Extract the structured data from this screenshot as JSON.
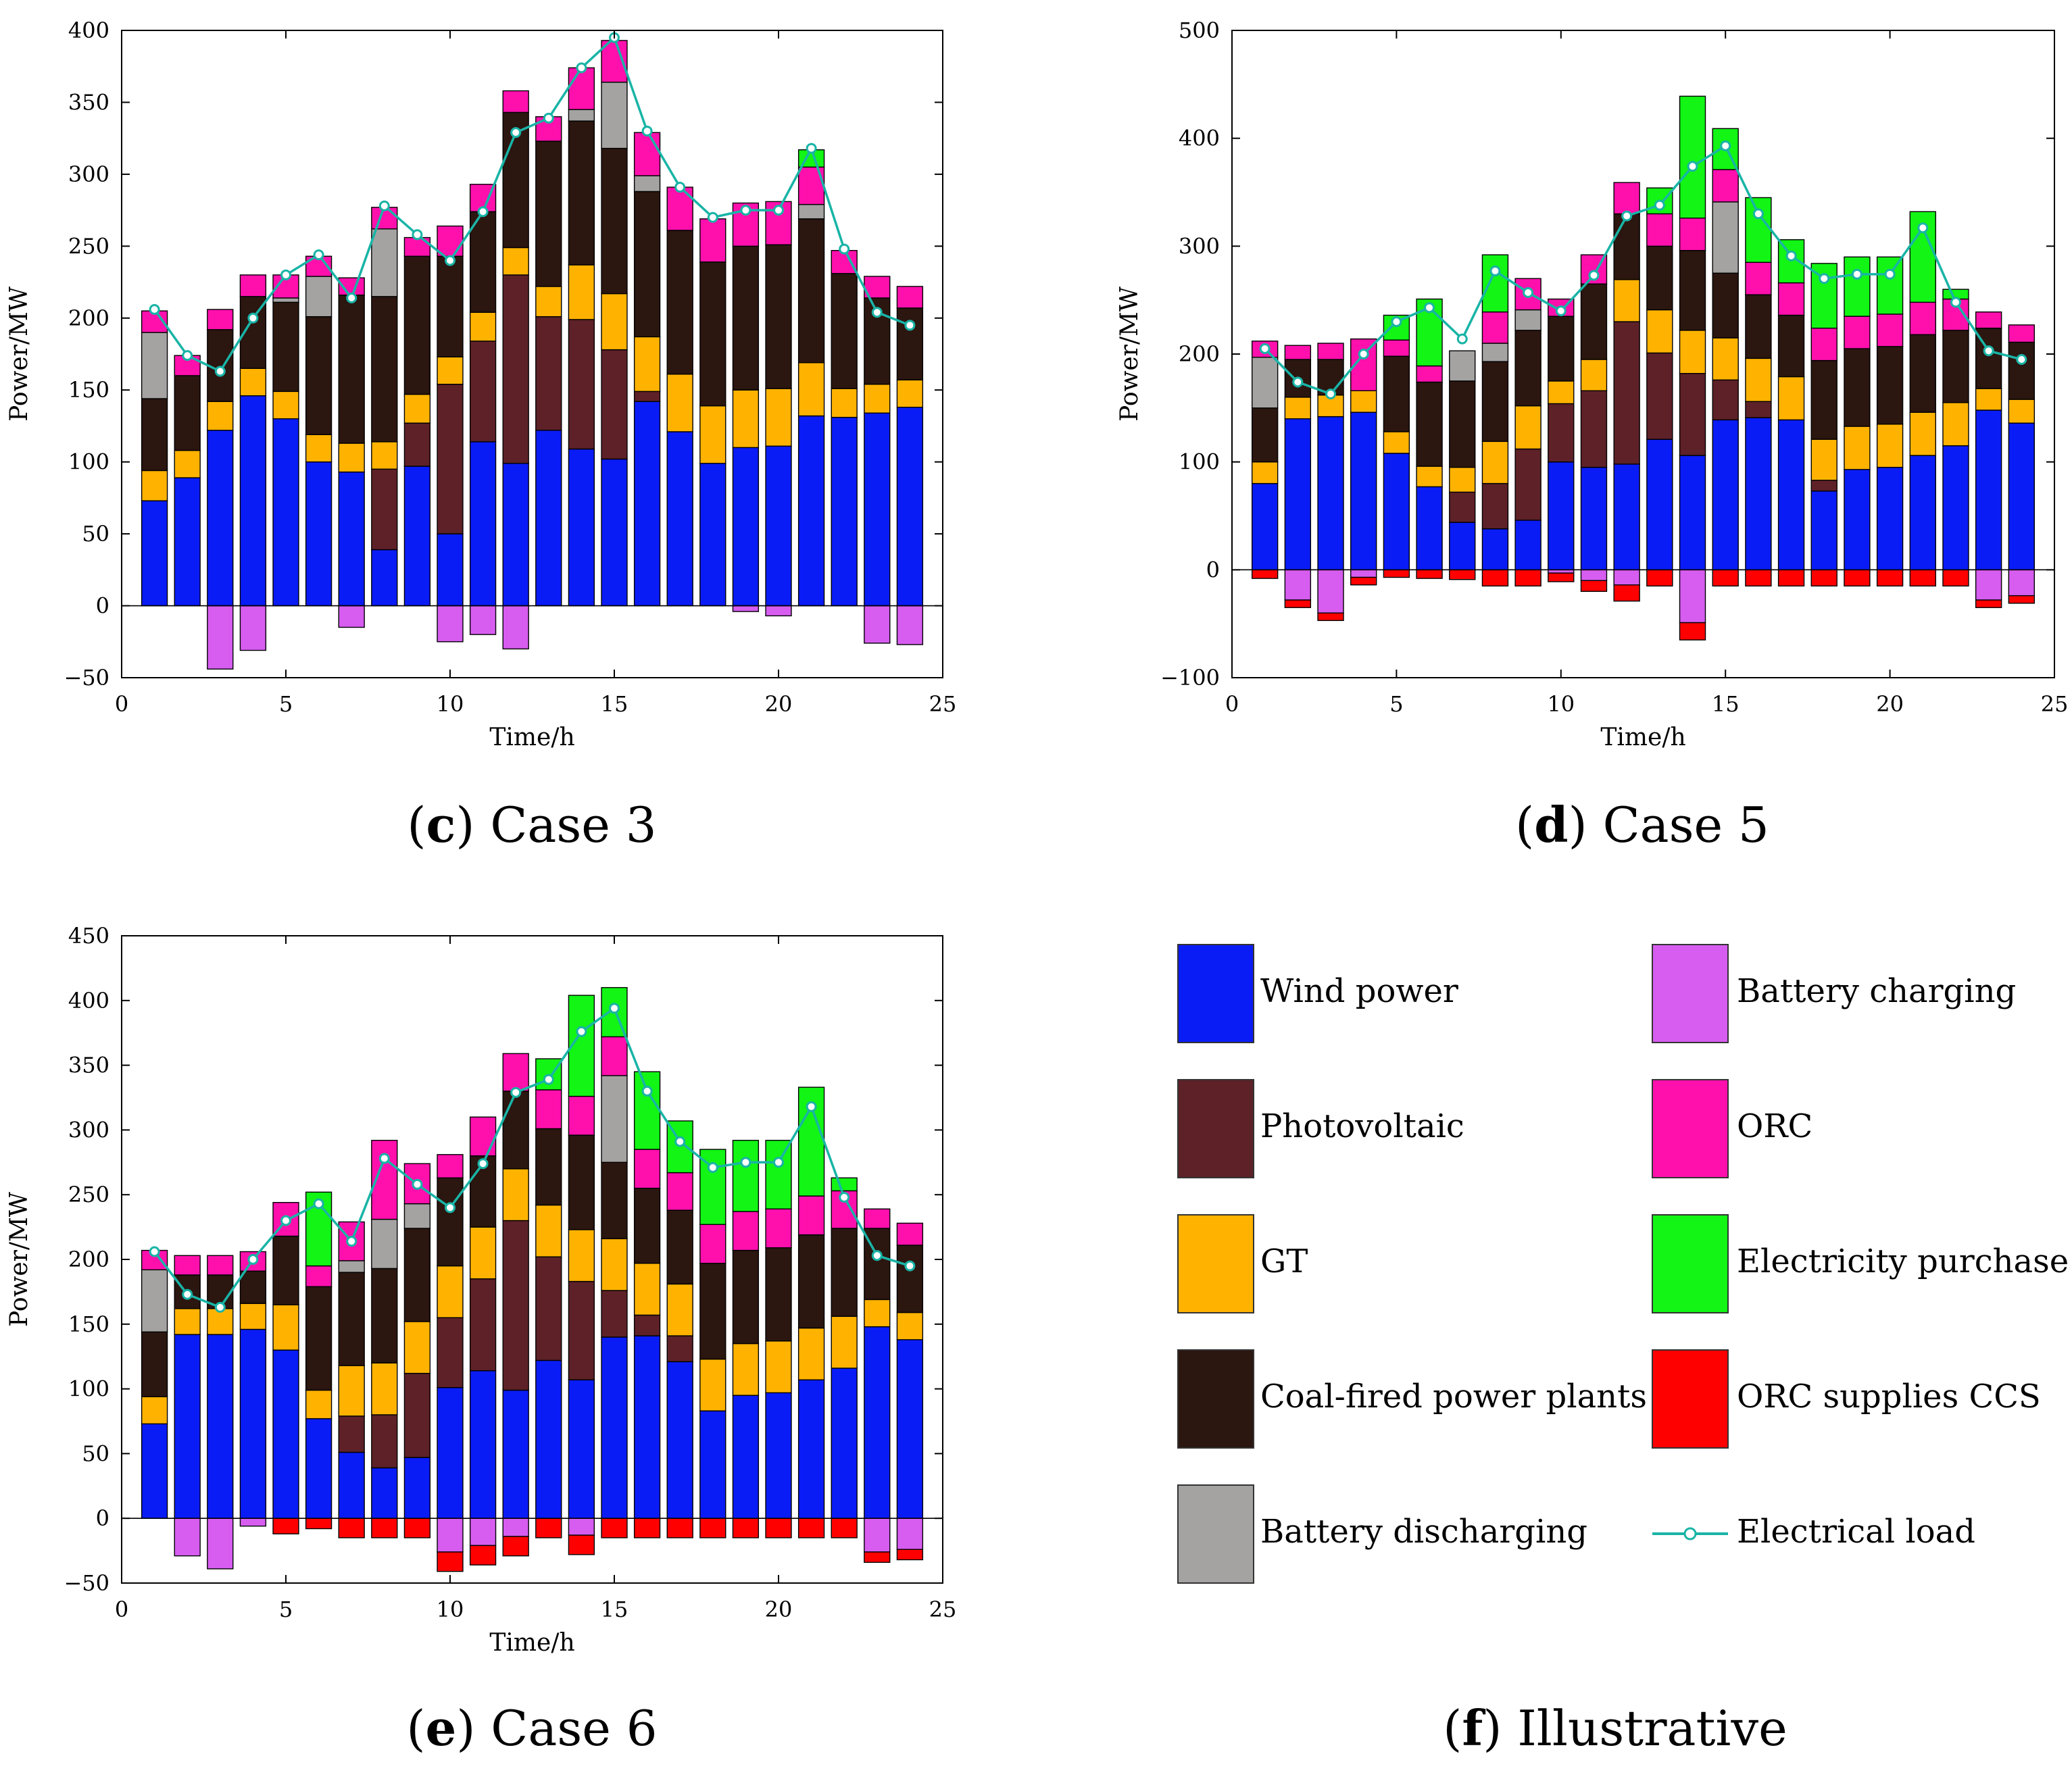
{
  "colors": {
    "wind": "#0a1cf5",
    "pv": "#5e2128",
    "gt": "#ffb300",
    "coal": "#2b1610",
    "bdis": "#a5a2a2",
    "bch": "#d65df0",
    "orc": "#ff10ad",
    "buy": "#12f515",
    "ccs": "#ff0000",
    "load": "#19b4a6"
  },
  "chart_data": [
    {
      "id": "c",
      "type": "bar",
      "stacked": true,
      "caption_letter": "c",
      "caption_text": " Case 3",
      "xlabel": "Time/h",
      "ylabel": "Power/MW",
      "xlim": [
        0,
        25
      ],
      "ylim": [
        -50,
        400
      ],
      "xticks": [
        0,
        5,
        10,
        15,
        20,
        25
      ],
      "yticks": [
        -50,
        0,
        50,
        100,
        150,
        200,
        250,
        300,
        350,
        400
      ],
      "x": [
        1,
        2,
        3,
        4,
        5,
        6,
        7,
        8,
        9,
        10,
        11,
        12,
        13,
        14,
        15,
        16,
        17,
        18,
        19,
        20,
        21,
        22,
        23,
        24
      ],
      "series": [
        {
          "key": "wind",
          "values": [
            73,
            89,
            122,
            146,
            130,
            100,
            93,
            39,
            97,
            50,
            114,
            99,
            122,
            109,
            102,
            142,
            121,
            99,
            110,
            111,
            132,
            131,
            134,
            138
          ]
        },
        {
          "key": "pv",
          "values": [
            0,
            0,
            0,
            0,
            0,
            0,
            0,
            56,
            30,
            104,
            70,
            131,
            79,
            90,
            76,
            7,
            0,
            0,
            0,
            0,
            0,
            0,
            0,
            0
          ]
        },
        {
          "key": "gt",
          "values": [
            21,
            19,
            20,
            19,
            19,
            19,
            20,
            19,
            20,
            19,
            20,
            19,
            21,
            38,
            39,
            38,
            40,
            40,
            40,
            40,
            37,
            20,
            20,
            19
          ]
        },
        {
          "key": "coal",
          "values": [
            50,
            52,
            50,
            50,
            62,
            82,
            103,
            101,
            96,
            70,
            70,
            94,
            101,
            100,
            101,
            101,
            100,
            100,
            100,
            100,
            100,
            80,
            60,
            50
          ]
        },
        {
          "key": "bdis",
          "values": [
            46,
            0,
            0,
            0,
            3,
            28,
            0,
            47,
            0,
            0,
            0,
            0,
            0,
            8,
            46,
            11,
            0,
            0,
            0,
            0,
            10,
            0,
            0,
            0
          ]
        },
        {
          "key": "orc",
          "values": [
            15,
            14,
            14,
            15,
            16,
            14,
            12,
            15,
            13,
            21,
            19,
            15,
            17,
            29,
            29,
            30,
            30,
            30,
            30,
            30,
            26,
            16,
            15,
            15
          ]
        },
        {
          "key": "buy",
          "values": [
            0,
            0,
            0,
            0,
            0,
            0,
            0,
            0,
            0,
            0,
            0,
            0,
            0,
            0,
            0,
            0,
            0,
            0,
            0,
            0,
            12,
            0,
            0,
            0
          ]
        },
        {
          "key": "bch",
          "values": [
            0,
            0,
            -44,
            -31,
            0,
            0,
            -15,
            0,
            0,
            -25,
            -20,
            -30,
            0,
            0,
            0,
            0,
            0,
            0,
            -4,
            -7,
            0,
            0,
            -26,
            -27
          ]
        },
        {
          "key": "ccs",
          "values": [
            0,
            0,
            0,
            0,
            0,
            0,
            0,
            0,
            0,
            0,
            0,
            0,
            0,
            0,
            0,
            0,
            0,
            0,
            0,
            0,
            0,
            0,
            0,
            0
          ]
        }
      ],
      "load": [
        206,
        174,
        163,
        200,
        230,
        244,
        214,
        278,
        258,
        240,
        274,
        329,
        339,
        374,
        395,
        330,
        291,
        270,
        275,
        275,
        318,
        248,
        204,
        195
      ]
    },
    {
      "id": "d",
      "type": "bar",
      "stacked": true,
      "caption_letter": "d",
      "caption_text": " Case 5",
      "xlabel": "Time/h",
      "ylabel": "Power/MW",
      "xlim": [
        0,
        25
      ],
      "ylim": [
        -100,
        500
      ],
      "xticks": [
        0,
        5,
        10,
        15,
        20,
        25
      ],
      "yticks": [
        -100,
        0,
        100,
        200,
        300,
        400,
        500
      ],
      "x": [
        1,
        2,
        3,
        4,
        5,
        6,
        7,
        8,
        9,
        10,
        11,
        12,
        13,
        14,
        15,
        16,
        17,
        18,
        19,
        20,
        21,
        22,
        23,
        24
      ],
      "series": [
        {
          "key": "wind",
          "values": [
            80,
            140,
            142,
            146,
            108,
            77,
            44,
            38,
            46,
            100,
            95,
            98,
            121,
            106,
            139,
            141,
            139,
            73,
            93,
            95,
            106,
            115,
            148,
            136
          ]
        },
        {
          "key": "pv",
          "values": [
            0,
            0,
            0,
            0,
            0,
            0,
            28,
            42,
            66,
            54,
            71,
            132,
            80,
            76,
            37,
            15,
            0,
            10,
            0,
            0,
            0,
            0,
            0,
            0
          ]
        },
        {
          "key": "gt",
          "values": [
            20,
            20,
            20,
            20,
            20,
            19,
            23,
            39,
            40,
            21,
            29,
            39,
            40,
            40,
            39,
            40,
            40,
            38,
            40,
            40,
            40,
            40,
            20,
            22
          ]
        },
        {
          "key": "coal",
          "values": [
            50,
            35,
            33,
            0,
            70,
            78,
            80,
            74,
            70,
            60,
            70,
            61,
            59,
            74,
            60,
            59,
            57,
            73,
            72,
            72,
            72,
            67,
            56,
            53
          ]
        },
        {
          "key": "bdis",
          "values": [
            47,
            0,
            0,
            0,
            0,
            0,
            28,
            17,
            19,
            0,
            0,
            0,
            0,
            0,
            66,
            0,
            0,
            0,
            0,
            0,
            0,
            0,
            0,
            0
          ]
        },
        {
          "key": "orc",
          "values": [
            15,
            13,
            15,
            48,
            15,
            15,
            0,
            29,
            29,
            16,
            27,
            29,
            30,
            30,
            30,
            30,
            30,
            30,
            30,
            30,
            30,
            29,
            15,
            16
          ]
        },
        {
          "key": "buy",
          "values": [
            0,
            0,
            0,
            0,
            23,
            62,
            0,
            53,
            0,
            0,
            0,
            0,
            24,
            113,
            38,
            60,
            40,
            60,
            55,
            53,
            84,
            9,
            0,
            0
          ]
        },
        {
          "key": "bch",
          "values": [
            0,
            -28,
            -40,
            -7,
            0,
            0,
            0,
            0,
            0,
            -3,
            -10,
            -14,
            0,
            -49,
            0,
            0,
            0,
            0,
            0,
            0,
            0,
            0,
            -28,
            -24
          ]
        },
        {
          "key": "ccs",
          "values": [
            -8,
            -7,
            -7,
            -7,
            -7,
            -8,
            -9,
            -15,
            -15,
            -8,
            -10,
            -15,
            -15,
            -16,
            -15,
            -15,
            -15,
            -15,
            -15,
            -15,
            -15,
            -15,
            -7,
            -7
          ]
        }
      ],
      "load": [
        205,
        174,
        163,
        200,
        230,
        243,
        214,
        277,
        257,
        240,
        273,
        328,
        338,
        374,
        393,
        330,
        291,
        270,
        274,
        274,
        317,
        248,
        203,
        195
      ]
    },
    {
      "id": "e",
      "type": "bar",
      "stacked": true,
      "caption_letter": "e",
      "caption_text": " Case 6",
      "xlabel": "Time/h",
      "ylabel": "Power/MW",
      "xlim": [
        0,
        25
      ],
      "ylim": [
        -50,
        450
      ],
      "xticks": [
        0,
        5,
        10,
        15,
        20,
        25
      ],
      "yticks": [
        -50,
        0,
        50,
        100,
        150,
        200,
        250,
        300,
        350,
        400,
        450
      ],
      "x": [
        1,
        2,
        3,
        4,
        5,
        6,
        7,
        8,
        9,
        10,
        11,
        12,
        13,
        14,
        15,
        16,
        17,
        18,
        19,
        20,
        21,
        22,
        23,
        24
      ],
      "series": [
        {
          "key": "wind",
          "values": [
            73,
            142,
            142,
            146,
            130,
            77,
            51,
            39,
            47,
            101,
            114,
            99,
            122,
            107,
            140,
            141,
            121,
            83,
            95,
            97,
            107,
            116,
            148,
            138
          ]
        },
        {
          "key": "pv",
          "values": [
            0,
            0,
            0,
            0,
            0,
            0,
            28,
            41,
            65,
            54,
            71,
            131,
            80,
            76,
            36,
            16,
            20,
            0,
            0,
            0,
            0,
            0,
            0,
            0
          ]
        },
        {
          "key": "gt",
          "values": [
            21,
            20,
            20,
            20,
            35,
            22,
            39,
            40,
            40,
            40,
            40,
            40,
            40,
            40,
            40,
            40,
            40,
            40,
            40,
            40,
            40,
            40,
            21,
            21
          ]
        },
        {
          "key": "coal",
          "values": [
            50,
            26,
            26,
            25,
            53,
            80,
            72,
            73,
            72,
            68,
            55,
            60,
            59,
            73,
            59,
            58,
            57,
            74,
            72,
            72,
            72,
            68,
            55,
            52
          ]
        },
        {
          "key": "bdis",
          "values": [
            48,
            0,
            0,
            0,
            0,
            0,
            9,
            38,
            19,
            0,
            0,
            0,
            0,
            0,
            67,
            0,
            0,
            0,
            0,
            0,
            0,
            0,
            0,
            0
          ]
        },
        {
          "key": "orc",
          "values": [
            15,
            15,
            15,
            15,
            26,
            16,
            30,
            61,
            31,
            18,
            30,
            29,
            30,
            30,
            30,
            30,
            29,
            30,
            30,
            30,
            30,
            29,
            15,
            17
          ]
        },
        {
          "key": "buy",
          "values": [
            0,
            0,
            0,
            0,
            0,
            57,
            0,
            0,
            0,
            0,
            0,
            0,
            24,
            78,
            38,
            60,
            40,
            58,
            55,
            53,
            84,
            10,
            0,
            0
          ]
        },
        {
          "key": "bch",
          "values": [
            0,
            -29,
            -39,
            -6,
            0,
            0,
            0,
            0,
            0,
            -26,
            -21,
            -14,
            0,
            -13,
            0,
            0,
            0,
            0,
            0,
            0,
            0,
            0,
            -26,
            -24
          ]
        },
        {
          "key": "ccs",
          "values": [
            0,
            0,
            0,
            0,
            -12,
            -8,
            -15,
            -15,
            -15,
            -15,
            -15,
            -15,
            -15,
            -15,
            -15,
            -15,
            -15,
            -15,
            -15,
            -15,
            -15,
            -15,
            -8,
            -8
          ]
        }
      ],
      "load": [
        206,
        173,
        163,
        200,
        230,
        243,
        214,
        278,
        258,
        240,
        274,
        329,
        339,
        376,
        394,
        330,
        291,
        271,
        275,
        275,
        318,
        248,
        203,
        195
      ]
    }
  ],
  "legend": {
    "caption_letter": "f",
    "caption_text": " Illustrative",
    "left_items": [
      {
        "key": "wind",
        "label": "Wind power"
      },
      {
        "key": "pv",
        "label": "Photovoltaic"
      },
      {
        "key": "gt",
        "label": "GT"
      },
      {
        "key": "coal",
        "label": "Coal-fired power plants"
      },
      {
        "key": "bdis",
        "label": "Battery discharging"
      }
    ],
    "right_items": [
      {
        "key": "bch",
        "label": "Battery charging"
      },
      {
        "key": "orc",
        "label": "ORC"
      },
      {
        "key": "buy",
        "label": "Electricity purchase"
      },
      {
        "key": "ccs",
        "label": "ORC supplies CCS"
      },
      {
        "key": "load",
        "label": "Electrical load"
      }
    ]
  }
}
